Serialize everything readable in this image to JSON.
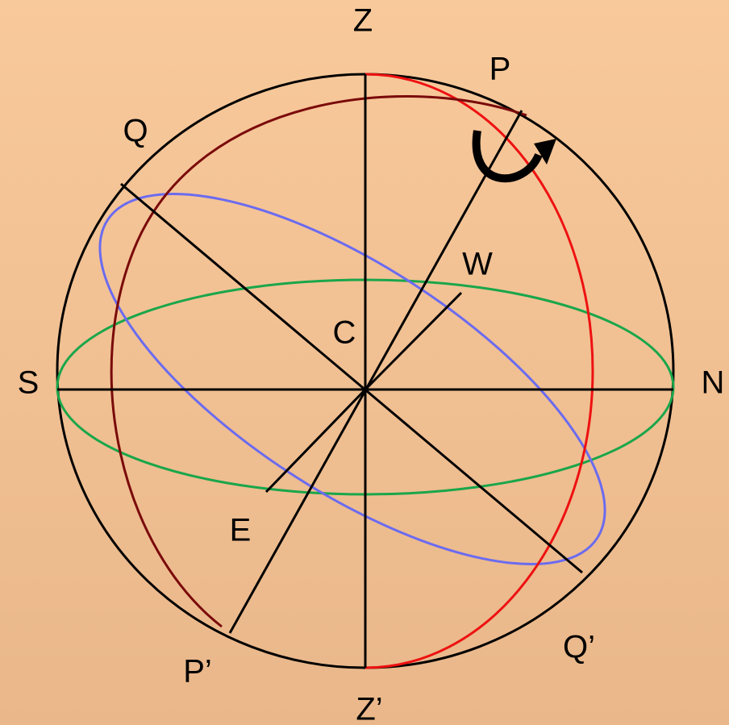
{
  "labels": [
    "Z",
    "P",
    "Q",
    "W",
    "C",
    "S",
    "N",
    "E",
    "P’",
    "Q’",
    "Z’"
  ]
}
